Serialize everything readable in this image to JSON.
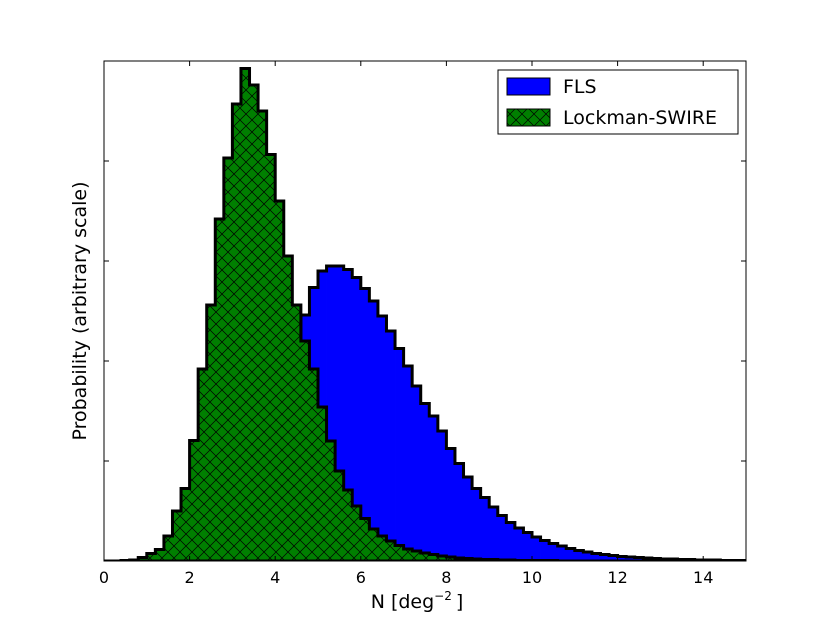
{
  "chart_data": {
    "type": "histogram",
    "title": "",
    "xlabel": "N [deg",
    "xlabel_sup": "−2",
    "xlabel_suffix": "]",
    "ylabel": "Probability (arbitrary scale)",
    "xlim": [
      0,
      15
    ],
    "ylim": [
      0,
      1.0
    ],
    "x_ticks": [
      0,
      2,
      4,
      6,
      8,
      10,
      12,
      14
    ],
    "y_tick_labels_shown": false,
    "y_ticks": [
      0.2,
      0.4,
      0.6,
      0.8,
      1.0
    ],
    "grid": false,
    "legend_position": "upper right",
    "bin_width": 0.2,
    "bin_start": 0.0,
    "series": [
      {
        "name": "FLS",
        "color": "#0000ff",
        "hatch": "none",
        "values": [
          0.0,
          0.0,
          0.001,
          0.001,
          0.002,
          0.003,
          0.005,
          0.007,
          0.01,
          0.016,
          0.023,
          0.033,
          0.047,
          0.065,
          0.088,
          0.111,
          0.14,
          0.175,
          0.21,
          0.252,
          0.3,
          0.351,
          0.418,
          0.492,
          0.547,
          0.58,
          0.59,
          0.59,
          0.583,
          0.567,
          0.545,
          0.52,
          0.49,
          0.46,
          0.425,
          0.39,
          0.35,
          0.315,
          0.29,
          0.26,
          0.225,
          0.195,
          0.168,
          0.145,
          0.127,
          0.108,
          0.091,
          0.077,
          0.066,
          0.057,
          0.048,
          0.041,
          0.035,
          0.03,
          0.025,
          0.021,
          0.018,
          0.015,
          0.013,
          0.011,
          0.009,
          0.008,
          0.007,
          0.006,
          0.005,
          0.004,
          0.004,
          0.003,
          0.003,
          0.002,
          0.002,
          0.002,
          0.001,
          0.001,
          0.001
        ]
      },
      {
        "name": "Lockman-SWIRE",
        "color": "#007f00",
        "hatch": "cross",
        "values": [
          0.0,
          0.0,
          0.001,
          0.002,
          0.007,
          0.015,
          0.023,
          0.05,
          0.1,
          0.145,
          0.241,
          0.384,
          0.512,
          0.684,
          0.806,
          0.914,
          0.985,
          0.952,
          0.9,
          0.813,
          0.72,
          0.61,
          0.512,
          0.44,
          0.384,
          0.308,
          0.24,
          0.18,
          0.142,
          0.11,
          0.085,
          0.064,
          0.05,
          0.04,
          0.031,
          0.024,
          0.02,
          0.016,
          0.013,
          0.01,
          0.008,
          0.006,
          0.005,
          0.004,
          0.003,
          0.003,
          0.002,
          0.002,
          0.001,
          0.001,
          0.001,
          0.001,
          0.001,
          0.0,
          0.0,
          0.0,
          0.0,
          0.0,
          0.0,
          0.0,
          0.0,
          0.0,
          0.0,
          0.0,
          0.0,
          0.0,
          0.0,
          0.0,
          0.0,
          0.0,
          0.0,
          0.0,
          0.0,
          0.0,
          0.0
        ]
      }
    ]
  }
}
